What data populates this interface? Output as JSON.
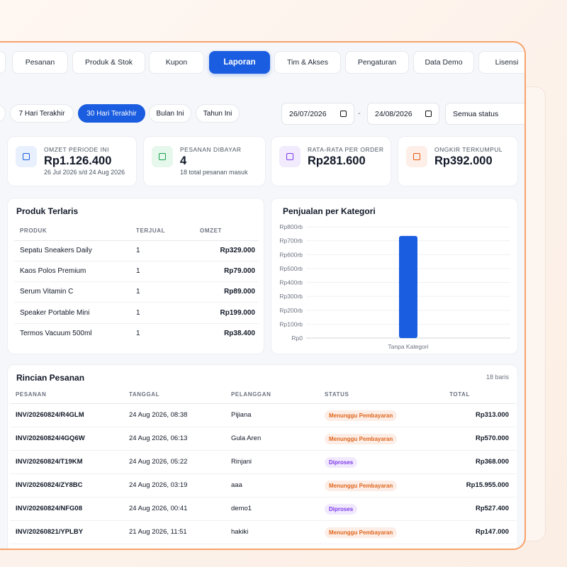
{
  "nav": {
    "tabs": [
      {
        "label": "Pesanan"
      },
      {
        "label": "Produk & Stok"
      },
      {
        "label": "Kupon"
      },
      {
        "label": "Laporan",
        "active": true
      },
      {
        "label": "Tim & Akses"
      },
      {
        "label": "Pengaturan"
      },
      {
        "label": "Data Demo"
      },
      {
        "label": "Lisensi"
      }
    ]
  },
  "filters": {
    "periods": [
      {
        "label": "7 Hari Terakhir"
      },
      {
        "label": "30 Hari Terakhir",
        "active": true
      },
      {
        "label": "Bulan Ini"
      },
      {
        "label": "Tahun Ini"
      }
    ],
    "date_from": "26/07/2026",
    "date_separator": "-",
    "date_to": "24/08/2026",
    "status": "Semua status"
  },
  "stats": [
    {
      "label": "OMZET PERIODE INI",
      "value": "Rp1.126.400",
      "sub": "26 Jul 2026 s/d 24 Aug 2026"
    },
    {
      "label": "PESANAN DIBAYAR",
      "value": "4",
      "sub": "18 total pesanan masuk"
    },
    {
      "label": "RATA-RATA PER ORDER",
      "value": "Rp281.600"
    },
    {
      "label": "ONGKIR TERKUMPUL",
      "value": "Rp392.000"
    }
  ],
  "top_products": {
    "title": "Produk Terlaris",
    "headers": [
      "PRODUK",
      "TERJUAL",
      "OMZET"
    ],
    "rows": [
      [
        "Sepatu Sneakers Daily",
        "1",
        "Rp329.000"
      ],
      [
        "Kaos Polos Premium",
        "1",
        "Rp79.000"
      ],
      [
        "Serum Vitamin C",
        "1",
        "Rp89.000"
      ],
      [
        "Speaker Portable Mini",
        "1",
        "Rp199.000"
      ],
      [
        "Termos Vacuum 500ml",
        "1",
        "Rp38.400"
      ]
    ]
  },
  "chart_data": {
    "type": "bar",
    "title": "Penjualan per Kategori",
    "categories": [
      "Tanpa Kategori"
    ],
    "values": [
      734400
    ],
    "color": "#1a5de0",
    "ylim": [
      0,
      800000
    ],
    "yticks": [
      {
        "value": 0,
        "label": "Rp0"
      },
      {
        "value": 100000,
        "label": "Rp100rb"
      },
      {
        "value": 200000,
        "label": "Rp200rb"
      },
      {
        "value": 300000,
        "label": "Rp300rb"
      },
      {
        "value": 400000,
        "label": "Rp400rb"
      },
      {
        "value": 500000,
        "label": "Rp500rb"
      },
      {
        "value": 600000,
        "label": "Rp600rb"
      },
      {
        "value": 700000,
        "label": "Rp700rb"
      },
      {
        "value": 800000,
        "label": "Rp800rb"
      }
    ],
    "grid": true
  },
  "orders": {
    "title": "Rincian Pesanan",
    "count": "18 baris",
    "headers": [
      "PESANAN",
      "TANGGAL",
      "PELANGGAN",
      "STATUS",
      "TOTAL"
    ],
    "rows": [
      {
        "pesanan": "INV/20260824/R4GLM",
        "tanggal": "24 Aug 2026, 08:38",
        "pelanggan": "Pijiana",
        "status": "Menunggu Pembayaran",
        "status_color": "#e0651d",
        "total": "Rp313.000"
      },
      {
        "pesanan": "INV/20260824/4GQ6W",
        "tanggal": "24 Aug 2026, 06:13",
        "pelanggan": "Gula Aren",
        "status": "Menunggu Pembayaran",
        "status_color": "#e0651d",
        "total": "Rp570.000"
      },
      {
        "pesanan": "INV/20260824/T19KM",
        "tanggal": "24 Aug 2026, 05:22",
        "pelanggan": "Rinjani",
        "status": "Diproses",
        "status_color": "#7c3aed",
        "total": "Rp368.000"
      },
      {
        "pesanan": "INV/20260824/ZY8BC",
        "tanggal": "24 Aug 2026, 03:19",
        "pelanggan": "aaa",
        "status": "Menunggu Pembayaran",
        "status_color": "#e0651d",
        "total": "Rp15.955.000"
      },
      {
        "pesanan": "INV/20260824/NFG08",
        "tanggal": "24 Aug 2026, 00:41",
        "pelanggan": "demo1",
        "status": "Diproses",
        "status_color": "#7c3aed",
        "total": "Rp527.400"
      },
      {
        "pesanan": "INV/20260821/YPLBY",
        "tanggal": "21 Aug 2026, 11:51",
        "pelanggan": "hakiki",
        "status": "Menunggu Pembayaran",
        "status_color": "#e0651d",
        "total": "Rp147.000"
      }
    ]
  }
}
